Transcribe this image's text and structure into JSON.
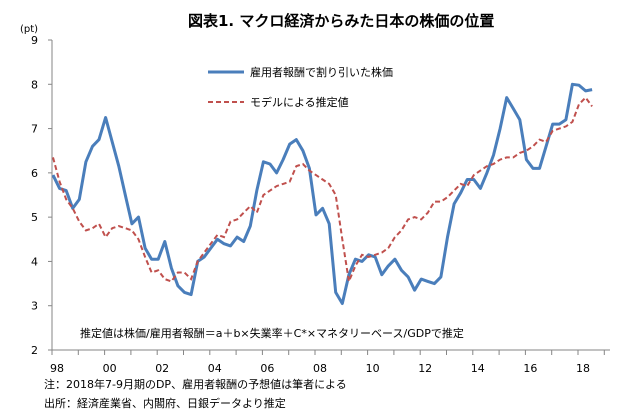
{
  "chart_data": {
    "type": "line",
    "title": "図表1. マクロ経済からみた日本の株価の位置",
    "ylabel": "(pt)",
    "xlabel": "",
    "ylim": [
      2,
      9
    ],
    "yticks": [
      2,
      3,
      4,
      5,
      6,
      7,
      8,
      9
    ],
    "x_start": "1998Q1",
    "x_end": "2018Q3",
    "frequency": "quarterly",
    "xtick_labels": [
      "98",
      "00",
      "02",
      "04",
      "06",
      "08",
      "10",
      "12",
      "14",
      "16",
      "18"
    ],
    "legend_position": "top-center",
    "colors": {
      "series1": "#4a7ebb",
      "series2": "#c0504d"
    },
    "series": [
      {
        "name": "雇用者報酬で割り引いた株価",
        "style": "solid",
        "values": [
          5.95,
          5.65,
          5.6,
          5.2,
          5.4,
          6.25,
          6.6,
          6.75,
          7.25,
          6.7,
          6.15,
          5.5,
          4.85,
          5.0,
          4.3,
          4.05,
          4.05,
          4.45,
          3.85,
          3.45,
          3.3,
          3.25,
          4.0,
          4.1,
          4.3,
          4.5,
          4.4,
          4.35,
          4.55,
          4.45,
          4.8,
          5.6,
          6.25,
          6.2,
          6.0,
          6.3,
          6.65,
          6.75,
          6.5,
          6.1,
          5.05,
          5.2,
          4.85,
          3.3,
          3.05,
          3.7,
          4.05,
          4.0,
          4.15,
          4.1,
          3.7,
          3.9,
          4.05,
          3.8,
          3.65,
          3.35,
          3.6,
          3.55,
          3.5,
          3.65,
          4.55,
          5.3,
          5.55,
          5.85,
          5.85,
          5.65,
          6.0,
          6.4,
          7.0,
          7.7,
          7.45,
          7.2,
          6.3,
          6.1,
          6.1,
          6.6,
          7.1,
          7.1,
          7.2,
          8.0,
          7.98,
          7.85,
          7.88
        ]
      },
      {
        "name": "モデルによる推定値",
        "style": "dashed",
        "values": [
          6.35,
          5.8,
          5.4,
          5.2,
          4.9,
          4.7,
          4.75,
          4.85,
          4.55,
          4.75,
          4.8,
          4.75,
          4.7,
          4.5,
          4.1,
          3.75,
          3.8,
          3.6,
          3.55,
          3.75,
          3.75,
          3.6,
          4.0,
          4.2,
          4.4,
          4.6,
          4.55,
          4.9,
          4.95,
          5.1,
          5.25,
          5.1,
          5.5,
          5.6,
          5.7,
          5.75,
          5.8,
          6.15,
          6.2,
          6.05,
          5.95,
          5.85,
          5.75,
          5.5,
          4.5,
          3.55,
          3.9,
          4.15,
          4.1,
          4.15,
          4.2,
          4.3,
          4.55,
          4.7,
          4.95,
          5.0,
          4.95,
          5.1,
          5.35,
          5.35,
          5.45,
          5.6,
          5.75,
          5.7,
          5.95,
          6.05,
          6.15,
          6.2,
          6.3,
          6.35,
          6.35,
          6.45,
          6.5,
          6.6,
          6.75,
          6.7,
          6.95,
          7.0,
          7.05,
          7.15,
          7.55,
          7.7,
          7.5
        ]
      }
    ],
    "annotation": "推定値は株価/雇用者報酬＝a＋b×失業率＋C*×マネタリーベース/GDPで推定"
  },
  "notes": {
    "note": "注：2018年7-9月期のDP、雇用者報酬の予想値は筆者による",
    "source": "出所：経済産業省、内閣府、日銀データより推定"
  }
}
